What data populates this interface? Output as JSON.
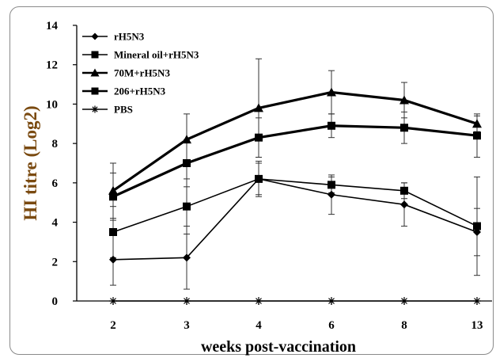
{
  "chart_data": {
    "type": "line",
    "title": "",
    "xlabel": "weeks post-vaccination",
    "ylabel": "HI titre (Log2)",
    "categories": [
      "2",
      "3",
      "4",
      "6",
      "8",
      "13"
    ],
    "ylim": [
      0,
      14
    ],
    "yticks": [
      "0",
      "2",
      "4",
      "6",
      "8",
      "10",
      "12",
      "14"
    ],
    "legend_position": "top-left",
    "grid": false,
    "series": [
      {
        "name": "rH5N3",
        "marker": "diamond",
        "bold": false,
        "values": [
          2.1,
          2.2,
          6.2,
          5.4,
          4.9,
          3.5
        ],
        "errors": [
          1.3,
          1.6,
          0.9,
          1.0,
          1.1,
          1.2
        ]
      },
      {
        "name": "Mineral oil+rH5N3",
        "marker": "square",
        "bold": false,
        "values": [
          3.5,
          4.8,
          6.2,
          5.9,
          5.6,
          3.8
        ],
        "errors": [
          1.3,
          1.4,
          0.8,
          0.4,
          0.4,
          2.5
        ]
      },
      {
        "name": "70M+rH5N3",
        "marker": "triangle",
        "bold": true,
        "values": [
          5.6,
          8.2,
          9.8,
          10.6,
          10.2,
          9.0
        ],
        "errors": [
          1.4,
          1.3,
          2.5,
          1.1,
          0.9,
          0.4
        ]
      },
      {
        "name": "206+rH5N3",
        "marker": "square",
        "bold": true,
        "values": [
          5.3,
          7.0,
          8.3,
          8.9,
          8.8,
          8.4
        ],
        "errors": [
          1.2,
          1.2,
          1.0,
          0.6,
          0.8,
          1.1
        ]
      },
      {
        "name": "PBS",
        "marker": "asterisk",
        "bold": false,
        "values": [
          0,
          0,
          0,
          0,
          0,
          0
        ],
        "errors": [
          0,
          0,
          0,
          0,
          0,
          0
        ]
      }
    ]
  }
}
